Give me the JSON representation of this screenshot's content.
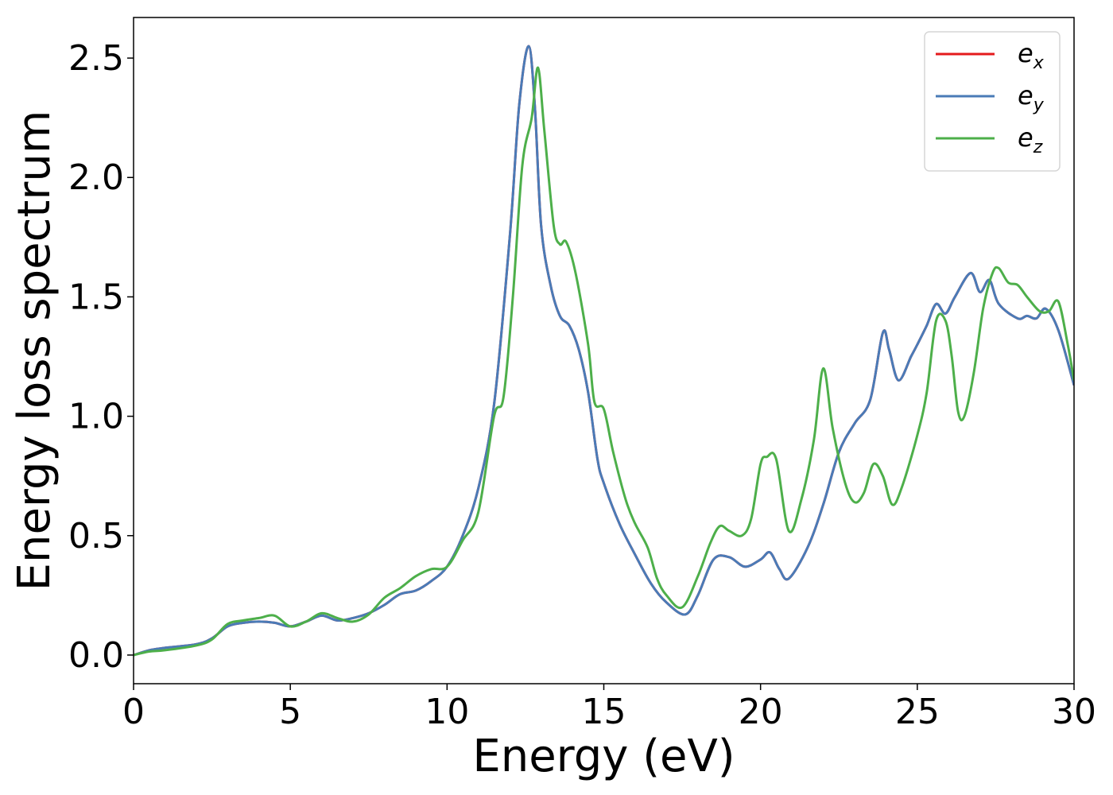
{
  "chart_data": {
    "type": "line",
    "title": "",
    "xlabel": "Energy (eV)",
    "ylabel": "Energy loss spectrum",
    "xlim": [
      0,
      30
    ],
    "ylim": [
      -0.12,
      2.67
    ],
    "xticks": [
      0,
      5,
      10,
      15,
      20,
      25,
      30
    ],
    "xtick_labels": [
      "0",
      "5",
      "10",
      "15",
      "20",
      "25",
      "30"
    ],
    "yticks": [
      0.0,
      0.5,
      1.0,
      1.5,
      2.0,
      2.5
    ],
    "ytick_labels": [
      "0.0",
      "0.5",
      "1.0",
      "1.5",
      "2.0",
      "2.5"
    ],
    "grid": false,
    "legend_position": "top-right",
    "series": [
      {
        "name": "e",
        "subscript": "x",
        "color": "#e41a1c",
        "points": [
          [
            0,
            0.0
          ],
          [
            0.5,
            0.02
          ],
          [
            1,
            0.03
          ],
          [
            2,
            0.045
          ],
          [
            2.5,
            0.07
          ],
          [
            3,
            0.12
          ],
          [
            3.5,
            0.135
          ],
          [
            4,
            0.14
          ],
          [
            4.5,
            0.135
          ],
          [
            5,
            0.12
          ],
          [
            5.5,
            0.14
          ],
          [
            6,
            0.165
          ],
          [
            6.5,
            0.145
          ],
          [
            7,
            0.155
          ],
          [
            7.5,
            0.175
          ],
          [
            8,
            0.21
          ],
          [
            8.5,
            0.255
          ],
          [
            9,
            0.27
          ],
          [
            9.5,
            0.31
          ],
          [
            10,
            0.37
          ],
          [
            10.5,
            0.5
          ],
          [
            11,
            0.7
          ],
          [
            11.5,
            1.05
          ],
          [
            12,
            1.75
          ],
          [
            12.3,
            2.3
          ],
          [
            12.6,
            2.55
          ],
          [
            12.8,
            2.3
          ],
          [
            13,
            1.8
          ],
          [
            13.3,
            1.55
          ],
          [
            13.6,
            1.42
          ],
          [
            13.9,
            1.38
          ],
          [
            14.2,
            1.28
          ],
          [
            14.5,
            1.1
          ],
          [
            14.8,
            0.82
          ],
          [
            15,
            0.72
          ],
          [
            15.5,
            0.55
          ],
          [
            16,
            0.42
          ],
          [
            16.5,
            0.3
          ],
          [
            17,
            0.22
          ],
          [
            17.6,
            0.17
          ],
          [
            18,
            0.25
          ],
          [
            18.5,
            0.4
          ],
          [
            19,
            0.41
          ],
          [
            19.5,
            0.37
          ],
          [
            20,
            0.4
          ],
          [
            20.3,
            0.43
          ],
          [
            20.6,
            0.36
          ],
          [
            20.9,
            0.32
          ],
          [
            21.5,
            0.45
          ],
          [
            22,
            0.63
          ],
          [
            22.5,
            0.85
          ],
          [
            23,
            0.97
          ],
          [
            23.5,
            1.07
          ],
          [
            23.9,
            1.35
          ],
          [
            24.1,
            1.28
          ],
          [
            24.4,
            1.15
          ],
          [
            24.8,
            1.25
          ],
          [
            25,
            1.3
          ],
          [
            25.3,
            1.38
          ],
          [
            25.6,
            1.47
          ],
          [
            25.9,
            1.43
          ],
          [
            26.2,
            1.5
          ],
          [
            26.7,
            1.6
          ],
          [
            27,
            1.52
          ],
          [
            27.3,
            1.57
          ],
          [
            27.6,
            1.47
          ],
          [
            28.2,
            1.41
          ],
          [
            28.5,
            1.42
          ],
          [
            28.8,
            1.41
          ],
          [
            29.1,
            1.45
          ],
          [
            29.5,
            1.36
          ],
          [
            30,
            1.13
          ]
        ]
      },
      {
        "name": "e",
        "subscript": "y",
        "color": "#4a7bb7",
        "points": [
          [
            0,
            0.0
          ],
          [
            0.5,
            0.02
          ],
          [
            1,
            0.03
          ],
          [
            2,
            0.045
          ],
          [
            2.5,
            0.07
          ],
          [
            3,
            0.12
          ],
          [
            3.5,
            0.135
          ],
          [
            4,
            0.14
          ],
          [
            4.5,
            0.135
          ],
          [
            5,
            0.12
          ],
          [
            5.5,
            0.14
          ],
          [
            6,
            0.165
          ],
          [
            6.5,
            0.145
          ],
          [
            7,
            0.155
          ],
          [
            7.5,
            0.175
          ],
          [
            8,
            0.21
          ],
          [
            8.5,
            0.255
          ],
          [
            9,
            0.27
          ],
          [
            9.5,
            0.31
          ],
          [
            10,
            0.37
          ],
          [
            10.5,
            0.5
          ],
          [
            11,
            0.7
          ],
          [
            11.5,
            1.05
          ],
          [
            12,
            1.75
          ],
          [
            12.3,
            2.3
          ],
          [
            12.6,
            2.55
          ],
          [
            12.8,
            2.3
          ],
          [
            13,
            1.8
          ],
          [
            13.3,
            1.55
          ],
          [
            13.6,
            1.42
          ],
          [
            13.9,
            1.38
          ],
          [
            14.2,
            1.28
          ],
          [
            14.5,
            1.1
          ],
          [
            14.8,
            0.82
          ],
          [
            15,
            0.72
          ],
          [
            15.5,
            0.55
          ],
          [
            16,
            0.42
          ],
          [
            16.5,
            0.3
          ],
          [
            17,
            0.22
          ],
          [
            17.6,
            0.17
          ],
          [
            18,
            0.25
          ],
          [
            18.5,
            0.4
          ],
          [
            19,
            0.41
          ],
          [
            19.5,
            0.37
          ],
          [
            20,
            0.4
          ],
          [
            20.3,
            0.43
          ],
          [
            20.6,
            0.36
          ],
          [
            20.9,
            0.32
          ],
          [
            21.5,
            0.45
          ],
          [
            22,
            0.63
          ],
          [
            22.5,
            0.85
          ],
          [
            23,
            0.97
          ],
          [
            23.5,
            1.07
          ],
          [
            23.9,
            1.35
          ],
          [
            24.1,
            1.28
          ],
          [
            24.4,
            1.15
          ],
          [
            24.8,
            1.25
          ],
          [
            25,
            1.3
          ],
          [
            25.3,
            1.38
          ],
          [
            25.6,
            1.47
          ],
          [
            25.9,
            1.43
          ],
          [
            26.2,
            1.5
          ],
          [
            26.7,
            1.6
          ],
          [
            27,
            1.52
          ],
          [
            27.3,
            1.57
          ],
          [
            27.6,
            1.47
          ],
          [
            28.2,
            1.41
          ],
          [
            28.5,
            1.42
          ],
          [
            28.8,
            1.41
          ],
          [
            29.1,
            1.45
          ],
          [
            29.5,
            1.36
          ],
          [
            30,
            1.13
          ]
        ]
      },
      {
        "name": "e",
        "subscript": "z",
        "color": "#4daf4a",
        "points": [
          [
            0,
            0.0
          ],
          [
            0.5,
            0.015
          ],
          [
            1,
            0.02
          ],
          [
            2,
            0.04
          ],
          [
            2.5,
            0.065
          ],
          [
            3,
            0.13
          ],
          [
            3.5,
            0.145
          ],
          [
            4,
            0.155
          ],
          [
            4.5,
            0.165
          ],
          [
            5,
            0.12
          ],
          [
            5.5,
            0.14
          ],
          [
            6,
            0.175
          ],
          [
            6.5,
            0.155
          ],
          [
            7,
            0.14
          ],
          [
            7.5,
            0.17
          ],
          [
            8,
            0.24
          ],
          [
            8.5,
            0.28
          ],
          [
            9,
            0.33
          ],
          [
            9.5,
            0.36
          ],
          [
            10,
            0.37
          ],
          [
            10.5,
            0.48
          ],
          [
            11,
            0.6
          ],
          [
            11.5,
            1.0
          ],
          [
            11.8,
            1.08
          ],
          [
            12.1,
            1.5
          ],
          [
            12.4,
            2.05
          ],
          [
            12.7,
            2.25
          ],
          [
            12.9,
            2.46
          ],
          [
            13.1,
            2.2
          ],
          [
            13.4,
            1.8
          ],
          [
            13.6,
            1.72
          ],
          [
            13.8,
            1.73
          ],
          [
            14.1,
            1.6
          ],
          [
            14.5,
            1.3
          ],
          [
            14.7,
            1.06
          ],
          [
            15,
            1.03
          ],
          [
            15.3,
            0.85
          ],
          [
            15.7,
            0.65
          ],
          [
            16,
            0.55
          ],
          [
            16.4,
            0.45
          ],
          [
            16.7,
            0.32
          ],
          [
            17,
            0.25
          ],
          [
            17.5,
            0.2
          ],
          [
            18,
            0.33
          ],
          [
            18.4,
            0.47
          ],
          [
            18.7,
            0.54
          ],
          [
            19,
            0.52
          ],
          [
            19.4,
            0.5
          ],
          [
            19.7,
            0.57
          ],
          [
            20,
            0.8
          ],
          [
            20.2,
            0.83
          ],
          [
            20.5,
            0.82
          ],
          [
            20.9,
            0.52
          ],
          [
            21.3,
            0.65
          ],
          [
            21.7,
            0.9
          ],
          [
            22,
            1.2
          ],
          [
            22.3,
            0.95
          ],
          [
            22.7,
            0.72
          ],
          [
            23,
            0.64
          ],
          [
            23.3,
            0.68
          ],
          [
            23.6,
            0.8
          ],
          [
            23.9,
            0.75
          ],
          [
            24.2,
            0.63
          ],
          [
            24.5,
            0.7
          ],
          [
            25,
            0.92
          ],
          [
            25.3,
            1.1
          ],
          [
            25.6,
            1.4
          ],
          [
            25.9,
            1.4
          ],
          [
            26.1,
            1.25
          ],
          [
            26.3,
            1.02
          ],
          [
            26.5,
            1.0
          ],
          [
            26.8,
            1.18
          ],
          [
            27.1,
            1.45
          ],
          [
            27.4,
            1.6
          ],
          [
            27.6,
            1.62
          ],
          [
            27.9,
            1.56
          ],
          [
            28.2,
            1.55
          ],
          [
            28.5,
            1.5
          ],
          [
            28.9,
            1.44
          ],
          [
            29.2,
            1.44
          ],
          [
            29.5,
            1.48
          ],
          [
            29.8,
            1.3
          ],
          [
            30,
            1.15
          ]
        ]
      }
    ]
  }
}
